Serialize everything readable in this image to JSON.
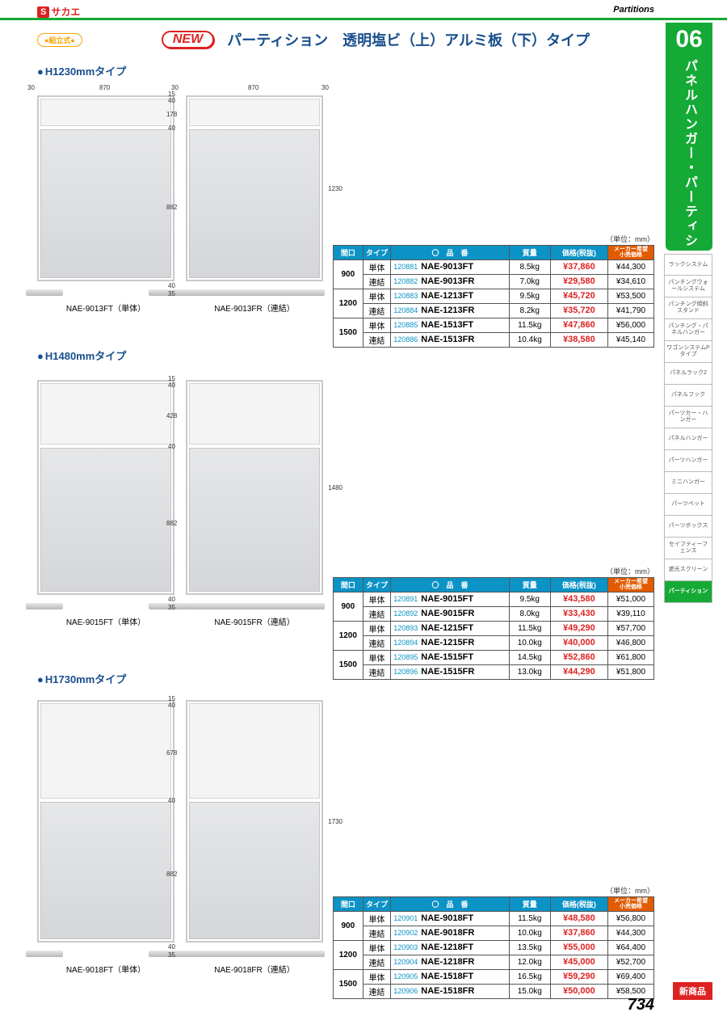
{
  "brand": {
    "s": "S",
    "name": "サカエ"
  },
  "topright_label": "Partitions",
  "side_tab": {
    "num": "06",
    "title": "パネルハンガー・パーティション"
  },
  "index_items": [
    "ラックシステム",
    "パンチングウォールシステム",
    "パンチング傾斜スタンド",
    "パンチング・パネルハンガー",
    "ワゴンシステムPタイプ",
    "パネルラック2",
    "パネルフック",
    "パーツカー・ハンガー",
    "パネルハンガー",
    "パーツハンガー",
    "ミニハンガー",
    "パーツペット",
    "パーツボックス",
    "セイフティーフェンス",
    "遮光スクリーン",
    "パーティション"
  ],
  "index_active": 15,
  "badge_assembly": "●組立式●",
  "badge_new": "NEW",
  "title": "パーティション　透明塩ビ（上）アルミ板（下）タイプ",
  "sections": [
    {
      "label": "H1230mmタイプ",
      "caption_ft": "NAE-9013FT（単体）",
      "caption_fr": "NAE-9013FR（連結）",
      "total_h": "1230",
      "t": "178",
      "b": "882",
      "top_w": "870",
      "side30": "30",
      "g40": "40",
      "g15": "15",
      "f40": "40",
      "f35": "35"
    },
    {
      "label": "H1480mmタイプ",
      "caption_ft": "NAE-9015FT（単体）",
      "caption_fr": "NAE-9015FR（連結）",
      "total_h": "1480",
      "t": "428",
      "b": "882",
      "top_w": "",
      "side30": "",
      "g40": "40",
      "g15": "15",
      "f40": "40",
      "f35": "35"
    },
    {
      "label": "H1730mmタイプ",
      "caption_ft": "NAE-9018FT（単体）",
      "caption_fr": "NAE-9018FR（連結）",
      "total_h": "1730",
      "t": "678",
      "b": "882",
      "top_w": "",
      "side30": "",
      "g40": "40",
      "g15": "15",
      "f40": "40",
      "f35": "35"
    }
  ],
  "unit_label": "（単位：mm）",
  "headers": {
    "w": "間口",
    "type": "タイプ",
    "pn": "〇　品　番",
    "mass": "質量",
    "price": "価格(税抜)",
    "maker": "メーカー希望\n小売価格"
  },
  "tables": [
    [
      {
        "w": "900",
        "type": "単体",
        "code": "120881",
        "name": "NAE-9013FT",
        "mass": "8.5kg",
        "price": "¥37,860",
        "maker": "¥44,300"
      },
      {
        "w": "900",
        "type": "連結",
        "code": "120882",
        "name": "NAE-9013FR",
        "mass": "7.0kg",
        "price": "¥29,580",
        "maker": "¥34,610"
      },
      {
        "w": "1200",
        "type": "単体",
        "code": "120883",
        "name": "NAE-1213FT",
        "mass": "9.5kg",
        "price": "¥45,720",
        "maker": "¥53,500"
      },
      {
        "w": "1200",
        "type": "連結",
        "code": "120884",
        "name": "NAE-1213FR",
        "mass": "8.2kg",
        "price": "¥35,720",
        "maker": "¥41,790"
      },
      {
        "w": "1500",
        "type": "単体",
        "code": "120885",
        "name": "NAE-1513FT",
        "mass": "11.5kg",
        "price": "¥47,860",
        "maker": "¥56,000"
      },
      {
        "w": "1500",
        "type": "連結",
        "code": "120886",
        "name": "NAE-1513FR",
        "mass": "10.4kg",
        "price": "¥38,580",
        "maker": "¥45,140"
      }
    ],
    [
      {
        "w": "900",
        "type": "単体",
        "code": "120891",
        "name": "NAE-9015FT",
        "mass": "9.5kg",
        "price": "¥43,580",
        "maker": "¥51,000"
      },
      {
        "w": "900",
        "type": "連結",
        "code": "120892",
        "name": "NAE-9015FR",
        "mass": "8.0kg",
        "price": "¥33,430",
        "maker": "¥39,110"
      },
      {
        "w": "1200",
        "type": "単体",
        "code": "120893",
        "name": "NAE-1215FT",
        "mass": "11.5kg",
        "price": "¥49,290",
        "maker": "¥57,700"
      },
      {
        "w": "1200",
        "type": "連結",
        "code": "120894",
        "name": "NAE-1215FR",
        "mass": "10.0kg",
        "price": "¥40,000",
        "maker": "¥46,800"
      },
      {
        "w": "1500",
        "type": "単体",
        "code": "120895",
        "name": "NAE-1515FT",
        "mass": "14.5kg",
        "price": "¥52,860",
        "maker": "¥61,800"
      },
      {
        "w": "1500",
        "type": "連結",
        "code": "120896",
        "name": "NAE-1515FR",
        "mass": "13.0kg",
        "price": "¥44,290",
        "maker": "¥51,800"
      }
    ],
    [
      {
        "w": "900",
        "type": "単体",
        "code": "120901",
        "name": "NAE-9018FT",
        "mass": "11.5kg",
        "price": "¥48,580",
        "maker": "¥56,800"
      },
      {
        "w": "900",
        "type": "連結",
        "code": "120902",
        "name": "NAE-9018FR",
        "mass": "10.0kg",
        "price": "¥37,860",
        "maker": "¥44,300"
      },
      {
        "w": "1200",
        "type": "単体",
        "code": "120903",
        "name": "NAE-1218FT",
        "mass": "13.5kg",
        "price": "¥55,000",
        "maker": "¥64,400"
      },
      {
        "w": "1200",
        "type": "連結",
        "code": "120904",
        "name": "NAE-1218FR",
        "mass": "12.0kg",
        "price": "¥45,000",
        "maker": "¥52,700"
      },
      {
        "w": "1500",
        "type": "単体",
        "code": "120905",
        "name": "NAE-1518FT",
        "mass": "16.5kg",
        "price": "¥59,290",
        "maker": "¥69,400"
      },
      {
        "w": "1500",
        "type": "連結",
        "code": "120906",
        "name": "NAE-1518FR",
        "mass": "15.0kg",
        "price": "¥50,000",
        "maker": "¥58,500"
      }
    ]
  ],
  "page_num": "734",
  "new_product": "新商品",
  "layout": {
    "section_tops": [
      78,
      430,
      830
    ],
    "diagram_tops": [
      118,
      470,
      866
    ],
    "table_tops": [
      289,
      700,
      1095
    ],
    "panel_heights": [
      230,
      266,
      300
    ],
    "panel_top_h": [
      34,
      76,
      118
    ]
  }
}
